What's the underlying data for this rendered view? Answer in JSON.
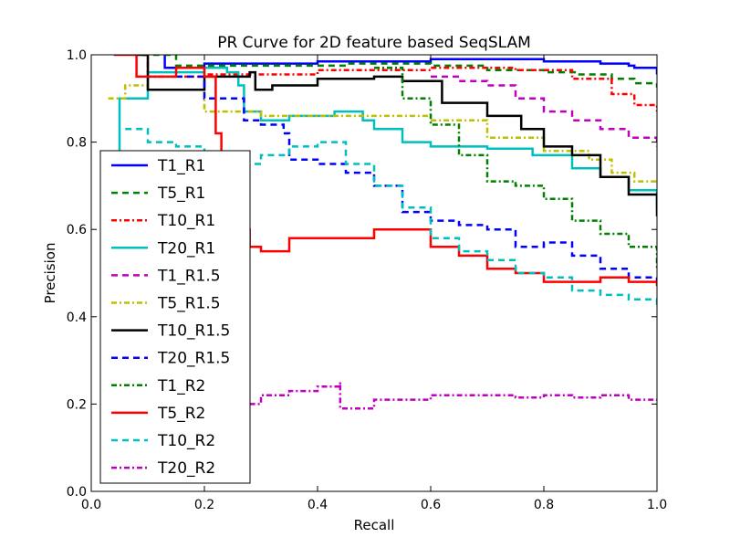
{
  "chart_data": {
    "type": "line",
    "title": "PR Curve for 2D feature based SeqSLAM",
    "xlabel": "Recall",
    "ylabel": "Precision",
    "xlim": [
      0.0,
      1.0
    ],
    "ylim": [
      0.0,
      1.0
    ],
    "x_ticks": [
      "0.0",
      "0.2",
      "0.4",
      "0.6",
      "0.8",
      "1.0"
    ],
    "y_ticks": [
      "0.0",
      "0.2",
      "0.4",
      "0.6",
      "0.8",
      "1.0"
    ],
    "grid": false,
    "legend_position": "lower-left",
    "series": [
      {
        "name": "T1_R1",
        "color": "#0000ff",
        "dash": "solid",
        "x": [
          0.13,
          0.13,
          0.2,
          0.4,
          0.6,
          0.8,
          0.9,
          0.95,
          0.96,
          1.0,
          1.0
        ],
        "y": [
          1.0,
          0.97,
          0.98,
          0.985,
          0.99,
          0.985,
          0.98,
          0.975,
          0.97,
          0.97,
          0.955
        ]
      },
      {
        "name": "T5_R1",
        "color": "#008000",
        "dash": "dashed",
        "x": [
          0.09,
          0.15,
          0.3,
          0.45,
          0.6,
          0.7,
          0.8,
          0.86,
          0.92,
          0.96,
          1.0
        ],
        "y": [
          1.0,
          0.975,
          0.975,
          0.98,
          0.975,
          0.965,
          0.96,
          0.955,
          0.945,
          0.935,
          0.925
        ]
      },
      {
        "name": "T10_R1",
        "color": "#ff0000",
        "dash": "dashdot",
        "x": [
          0.09,
          0.1,
          0.2,
          0.4,
          0.6,
          0.75,
          0.85,
          0.92,
          0.96,
          1.0
        ],
        "y": [
          1.0,
          0.95,
          0.955,
          0.965,
          0.97,
          0.965,
          0.945,
          0.91,
          0.885,
          0.87
        ]
      },
      {
        "name": "T20_R1",
        "color": "#00bfbf",
        "dash": "solid",
        "x": [
          0.02,
          0.05,
          0.1,
          0.2,
          0.24,
          0.26,
          0.27,
          0.3,
          0.35,
          0.43,
          0.48,
          0.5,
          0.55,
          0.6,
          0.7,
          0.78,
          0.85,
          0.9,
          0.95,
          1.0
        ],
        "y": [
          0.75,
          0.9,
          0.96,
          0.97,
          0.96,
          0.93,
          0.87,
          0.85,
          0.86,
          0.87,
          0.85,
          0.83,
          0.8,
          0.79,
          0.785,
          0.77,
          0.74,
          0.72,
          0.69,
          0.65
        ]
      },
      {
        "name": "T1_R1.5",
        "color": "#bf00bf",
        "dash": "dashed",
        "x": [
          0.6,
          0.65,
          0.7,
          0.75,
          0.8,
          0.85,
          0.9,
          0.95,
          1.0
        ],
        "y": [
          0.95,
          0.94,
          0.93,
          0.9,
          0.87,
          0.85,
          0.83,
          0.81,
          0.79
        ]
      },
      {
        "name": "T5_R1.5",
        "color": "#bfbf00",
        "dash": "dashdot",
        "x": [
          0.03,
          0.06,
          0.1,
          0.2,
          0.3,
          0.4,
          0.5,
          0.6,
          0.7,
          0.8,
          0.88,
          0.92,
          0.96,
          1.0
        ],
        "y": [
          0.9,
          0.93,
          0.92,
          0.87,
          0.86,
          0.86,
          0.86,
          0.85,
          0.81,
          0.78,
          0.76,
          0.73,
          0.71,
          0.71
        ]
      },
      {
        "name": "T10_R1.5",
        "color": "#000000",
        "dash": "solid",
        "x": [
          0.08,
          0.1,
          0.2,
          0.28,
          0.29,
          0.32,
          0.4,
          0.5,
          0.55,
          0.62,
          0.7,
          0.76,
          0.8,
          0.85,
          0.9,
          0.95,
          1.0
        ],
        "y": [
          1.0,
          0.92,
          0.95,
          0.96,
          0.92,
          0.93,
          0.945,
          0.95,
          0.94,
          0.89,
          0.86,
          0.83,
          0.79,
          0.77,
          0.72,
          0.68,
          0.63
        ]
      },
      {
        "name": "T20_R1.5",
        "color": "#0000ff",
        "dash": "dashed",
        "x": [
          0.15,
          0.2,
          0.27,
          0.3,
          0.34,
          0.35,
          0.4,
          0.45,
          0.5,
          0.55,
          0.6,
          0.65,
          0.7,
          0.75,
          0.8,
          0.85,
          0.9,
          0.95,
          1.0
        ],
        "y": [
          0.95,
          0.9,
          0.85,
          0.84,
          0.82,
          0.76,
          0.75,
          0.73,
          0.7,
          0.64,
          0.62,
          0.61,
          0.6,
          0.56,
          0.57,
          0.54,
          0.51,
          0.49,
          0.47
        ]
      },
      {
        "name": "T1_R2",
        "color": "#008000",
        "dash": "dashdot",
        "x": [
          0.5,
          0.55,
          0.6,
          0.65,
          0.7,
          0.75,
          0.8,
          0.85,
          0.9,
          0.95,
          1.0
        ],
        "y": [
          0.97,
          0.9,
          0.84,
          0.77,
          0.71,
          0.7,
          0.67,
          0.62,
          0.59,
          0.56,
          0.51
        ]
      },
      {
        "name": "T5_R2",
        "color": "#ff0000",
        "dash": "solid",
        "x": [
          0.04,
          0.08,
          0.15,
          0.2,
          0.22,
          0.23,
          0.25,
          0.28,
          0.3,
          0.35,
          0.4,
          0.5,
          0.55,
          0.6,
          0.65,
          0.7,
          0.75,
          0.8,
          0.85,
          0.9,
          0.95,
          1.0
        ],
        "y": [
          1.0,
          0.95,
          0.97,
          0.95,
          0.82,
          0.63,
          0.6,
          0.56,
          0.55,
          0.58,
          0.58,
          0.6,
          0.6,
          0.56,
          0.54,
          0.51,
          0.5,
          0.48,
          0.48,
          0.49,
          0.48,
          0.47
        ]
      },
      {
        "name": "T10_R2",
        "color": "#00bfbf",
        "dash": "dashed",
        "x": [
          0.06,
          0.1,
          0.15,
          0.2,
          0.25,
          0.3,
          0.35,
          0.4,
          0.45,
          0.5,
          0.55,
          0.6,
          0.65,
          0.7,
          0.75,
          0.8,
          0.85,
          0.9,
          0.95,
          1.0
        ],
        "y": [
          0.83,
          0.8,
          0.79,
          0.76,
          0.75,
          0.77,
          0.79,
          0.8,
          0.75,
          0.7,
          0.65,
          0.58,
          0.55,
          0.53,
          0.5,
          0.49,
          0.46,
          0.45,
          0.44,
          0.42
        ]
      },
      {
        "name": "T20_R2",
        "color": "#bf00bf",
        "dash": "dashdot",
        "x": [
          0.28,
          0.3,
          0.35,
          0.4,
          0.44,
          0.44,
          0.5,
          0.55,
          0.6,
          0.65,
          0.7,
          0.75,
          0.8,
          0.85,
          0.9,
          0.95,
          1.0
        ],
        "y": [
          0.2,
          0.22,
          0.23,
          0.24,
          0.25,
          0.19,
          0.21,
          0.21,
          0.22,
          0.22,
          0.22,
          0.215,
          0.22,
          0.215,
          0.22,
          0.21,
          0.2
        ]
      }
    ]
  }
}
